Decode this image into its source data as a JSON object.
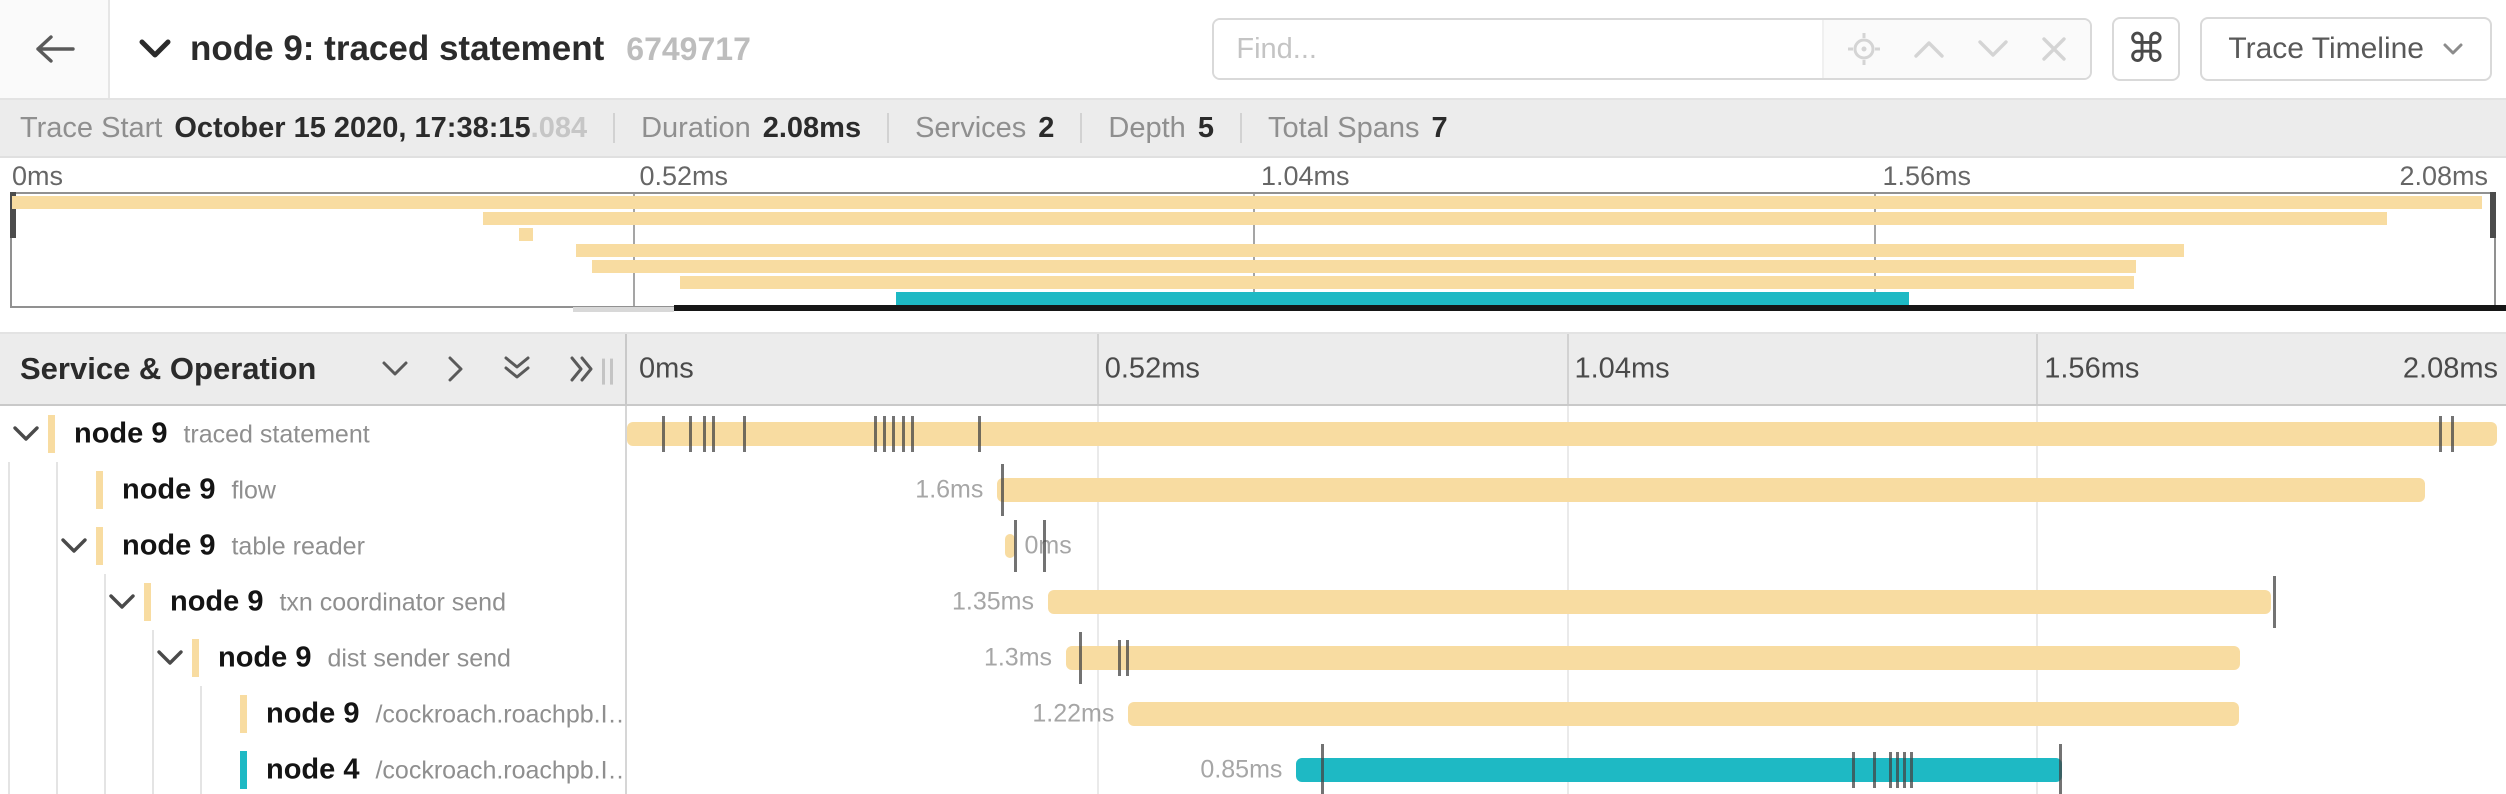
{
  "trace": {
    "duration_ms": 2.08
  },
  "header": {
    "title": "node 9: traced statement",
    "trace_id": "6749717",
    "find_placeholder": "Find...",
    "shortcut_button_glyph": "⌘",
    "view_selector_label": "Trace Timeline"
  },
  "summary": {
    "items": [
      {
        "label": "Trace Start",
        "value": "October 15 2020, 17:38:15",
        "suffix": ".084"
      },
      {
        "label": "Duration",
        "value": "2.08ms"
      },
      {
        "label": "Services",
        "value": "2"
      },
      {
        "label": "Depth",
        "value": "5"
      },
      {
        "label": "Total Spans",
        "value": "7"
      }
    ]
  },
  "timeline": {
    "left_header_title": "Service & Operation",
    "axis_ticks": [
      "0ms",
      "0.52ms",
      "1.04ms",
      "1.56ms",
      "2.08ms"
    ]
  },
  "icons": {
    "back": "arrow-left-icon",
    "title_toggle": "chevron-down-icon",
    "find_group": [
      "locate-icon",
      "chevron-up-icon",
      "chevron-down-icon",
      "close-icon"
    ],
    "shortcuts_button": "command-icon",
    "view_selector": "chevron-down-icon",
    "tree_controls": [
      "chevron-down-icon",
      "chevron-right-icon",
      "double-chevron-down-icon",
      "double-chevron-right-icon"
    ],
    "row_expander": "chevron-down-icon"
  },
  "colors": {
    "service_node9": "#F8DCA1",
    "service_node4": "#1EB9C4",
    "minimap_handle": "#4C4C4C",
    "tick_mark": "#444444"
  },
  "minimap": {
    "spans": [
      {
        "start_ms": 0,
        "end_ms": 2.07,
        "color": "#F8DCA1"
      },
      {
        "start_ms": 0.395,
        "end_ms": 1.99,
        "color": "#F8DCA1"
      },
      {
        "start_ms": 0.425,
        "end_ms": 0.437,
        "color": "#F8DCA1"
      },
      {
        "start_ms": 0.473,
        "end_ms": 1.82,
        "color": "#F8DCA1"
      },
      {
        "start_ms": 0.486,
        "end_ms": 1.78,
        "color": "#F8DCA1"
      },
      {
        "start_ms": 0.56,
        "end_ms": 1.778,
        "color": "#F8DCA1"
      },
      {
        "start_ms": 0.741,
        "end_ms": 1.59,
        "color": "#1EB9C4"
      }
    ]
  },
  "spans": [
    {
      "service": "node 9",
      "operation": "traced statement",
      "color": "#F8DCA1",
      "level": 0,
      "has_children": true,
      "guides": [],
      "start_ms": 0,
      "end_ms": 2.07,
      "duration_label": "",
      "label_side": "none",
      "ticks": [
        0.04,
        0.07,
        0.085,
        0.095,
        0.13,
        0.275,
        0.285,
        0.295,
        0.305,
        0.315,
        0.39,
        2.007,
        2.02
      ],
      "tall_ticks": []
    },
    {
      "service": "node 9",
      "operation": "flow",
      "color": "#F8DCA1",
      "level": 1,
      "has_children": false,
      "guides": [
        0,
        1
      ],
      "start_ms": 0.41,
      "end_ms": 1.99,
      "duration_label": "1.6ms",
      "label_side": "left",
      "ticks": [],
      "tall_ticks": [
        0.415
      ]
    },
    {
      "service": "node 9",
      "operation": "table reader",
      "color": "#F8DCA1",
      "level": 1,
      "has_children": true,
      "guides": [
        0,
        1
      ],
      "start_ms": 0.418,
      "end_ms": 0.429,
      "duration_label": "0ms",
      "label_side": "right",
      "ticks": [],
      "tall_ticks": [
        0.429,
        0.462
      ]
    },
    {
      "service": "node 9",
      "operation": "txn coordinator send",
      "color": "#F8DCA1",
      "level": 2,
      "has_children": true,
      "guides": [
        0,
        1,
        2
      ],
      "start_ms": 0.466,
      "end_ms": 1.82,
      "duration_label": "1.35ms",
      "label_side": "left",
      "ticks": [],
      "tall_ticks": [
        1.823
      ]
    },
    {
      "service": "node 9",
      "operation": "dist sender send",
      "color": "#F8DCA1",
      "level": 3,
      "has_children": true,
      "guides": [
        0,
        1,
        2,
        3
      ],
      "start_ms": 0.486,
      "end_ms": 1.785,
      "duration_label": "1.3ms",
      "label_side": "left",
      "ticks": [
        0.545,
        0.553
      ],
      "tall_ticks": [
        0.501
      ]
    },
    {
      "service": "node 9",
      "operation": "/cockroach.roachpb.I…",
      "color": "#F8DCA1",
      "level": 4,
      "has_children": false,
      "guides": [
        0,
        1,
        2,
        3,
        4
      ],
      "start_ms": 0.555,
      "end_ms": 1.785,
      "duration_label": "1.22ms",
      "label_side": "left",
      "ticks": [],
      "tall_ticks": []
    },
    {
      "service": "node 4",
      "operation": "/cockroach.roachpb.I…",
      "color": "#1EB9C4",
      "level": 4,
      "has_children": false,
      "guides": [
        0,
        1,
        2,
        3,
        4
      ],
      "start_ms": 0.741,
      "end_ms": 1.588,
      "duration_label": "0.85ms",
      "label_side": "left",
      "ticks": [
        1.357,
        1.38,
        1.398,
        1.406,
        1.414,
        1.421
      ],
      "tall_ticks": [
        0.769,
        1.586
      ]
    }
  ]
}
